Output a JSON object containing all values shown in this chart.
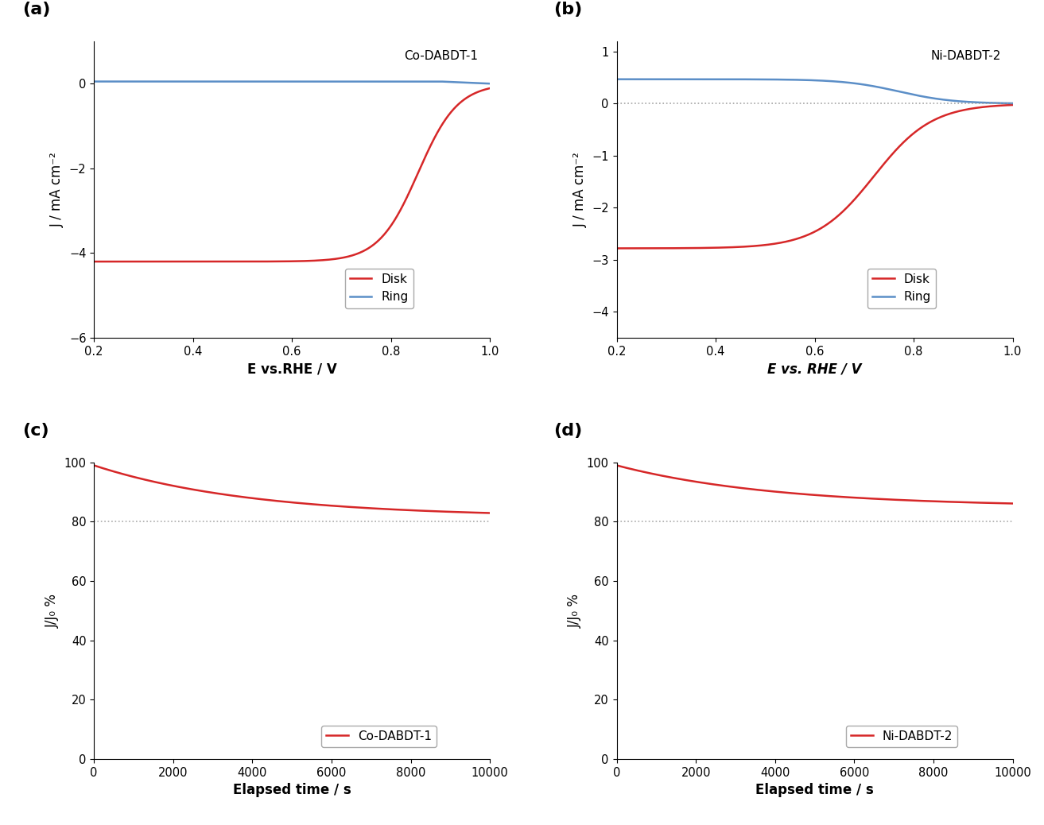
{
  "fig_width": 13.13,
  "fig_height": 10.38,
  "dpi": 100,
  "panel_a": {
    "label": "(a)",
    "annotation": "Co-DABDT-1",
    "xlim": [
      0.2,
      1.0
    ],
    "ylim": [
      -6,
      1
    ],
    "xticks": [
      0.2,
      0.4,
      0.6,
      0.8,
      1.0
    ],
    "yticks": [
      -6,
      -4,
      -2,
      0
    ],
    "xlabel": "E vs.RHE / V",
    "ylabel": "J / mA cm⁻²",
    "disk_color": "#d62728",
    "ring_color": "#5b8ec7",
    "disk_label": "Disk",
    "ring_label": "Ring",
    "disk_E_half": 0.855,
    "disk_k": 25,
    "disk_limiting": -4.2,
    "ring_level": 0.05,
    "ring_drop_start": 0.9,
    "ring_drop_end": 0.0
  },
  "panel_b": {
    "label": "(b)",
    "annotation": "Ni-DABDT-2",
    "xlim": [
      0.2,
      1.0
    ],
    "ylim": [
      -4.5,
      1.2
    ],
    "xticks": [
      0.2,
      0.4,
      0.6,
      0.8,
      1.0
    ],
    "yticks": [
      -4,
      -3,
      -2,
      -1,
      0,
      1
    ],
    "xlabel": "E vs. RHE / V",
    "ylabel": "J / mA cm⁻²",
    "disk_color": "#d62728",
    "ring_color": "#5b8ec7",
    "disk_label": "Disk",
    "ring_label": "Ring",
    "dashed_line_y": 0.0,
    "disk_E_half": 0.72,
    "disk_k": 17,
    "disk_limiting": -2.78,
    "ring_peak": 0.47,
    "ring_E_half": 0.77,
    "ring_k": 18
  },
  "panel_c": {
    "label": "(c)",
    "annotation": "Co-DABDT-1",
    "xlim": [
      0,
      10000
    ],
    "ylim": [
      0,
      100
    ],
    "xticks": [
      0,
      2000,
      4000,
      6000,
      8000,
      10000
    ],
    "yticks": [
      0,
      20,
      40,
      60,
      80,
      100
    ],
    "xlabel": "Elapsed time / s",
    "ylabel": "J/J₀ %",
    "line_color": "#d62728",
    "start_val": 99.0,
    "end_val": 81.5,
    "dashed_line_y": 80,
    "decay_rate": 2.5
  },
  "panel_d": {
    "label": "(d)",
    "annotation": "Ni-DABDT-2",
    "xlim": [
      0,
      10000
    ],
    "ylim": [
      0,
      100
    ],
    "xticks": [
      0,
      2000,
      4000,
      6000,
      8000,
      10000
    ],
    "yticks": [
      0,
      20,
      40,
      60,
      80,
      100
    ],
    "xlabel": "Elapsed time / s",
    "ylabel": "J/J₀ %",
    "line_color": "#d62728",
    "start_val": 99.0,
    "end_val": 85.0,
    "dashed_line_y": 80,
    "decay_rate": 2.5
  }
}
